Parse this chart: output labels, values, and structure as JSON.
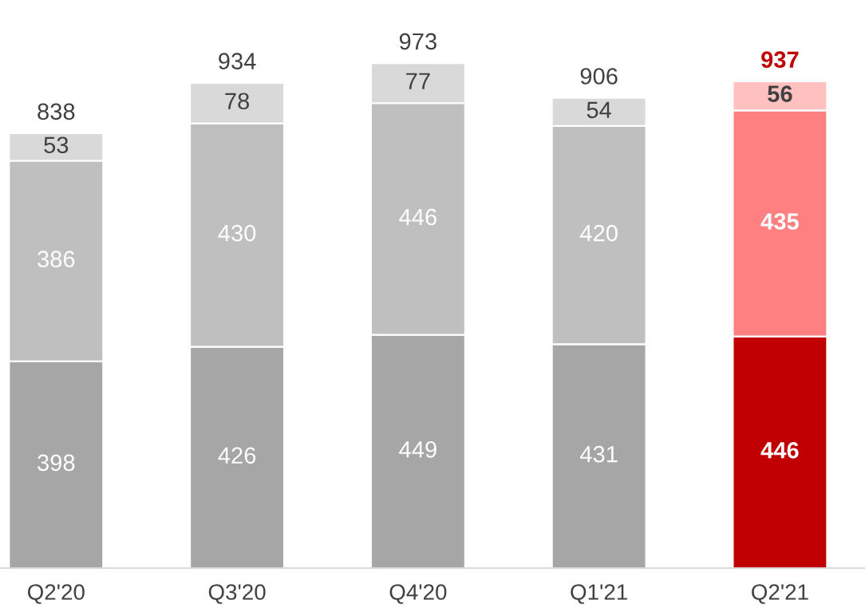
{
  "chart_data": {
    "type": "bar",
    "stacked": true,
    "data_labels": true,
    "categories": [
      "Q2'20",
      "Q3'20",
      "Q4'20",
      "Q1'21",
      "Q2'21"
    ],
    "series": [
      {
        "colors": [
          "#a6a6a6",
          "#a6a6a6",
          "#a6a6a6",
          "#a6a6a6",
          "#c00000"
        ],
        "values": [
          398,
          426,
          449,
          431,
          446
        ]
      },
      {
        "colors": [
          "#bfbfbf",
          "#bfbfbf",
          "#bfbfbf",
          "#bfbfbf",
          "#ff8080"
        ],
        "values": [
          386,
          430,
          446,
          420,
          435
        ]
      },
      {
        "colors": [
          "#d9d9d9",
          "#d9d9d9",
          "#d9d9d9",
          "#d9d9d9",
          "#ffc0c0"
        ],
        "values": [
          53,
          78,
          77,
          54,
          56
        ]
      }
    ],
    "totals": [
      "838",
      "934",
      "973",
      "906",
      "937"
    ]
  }
}
